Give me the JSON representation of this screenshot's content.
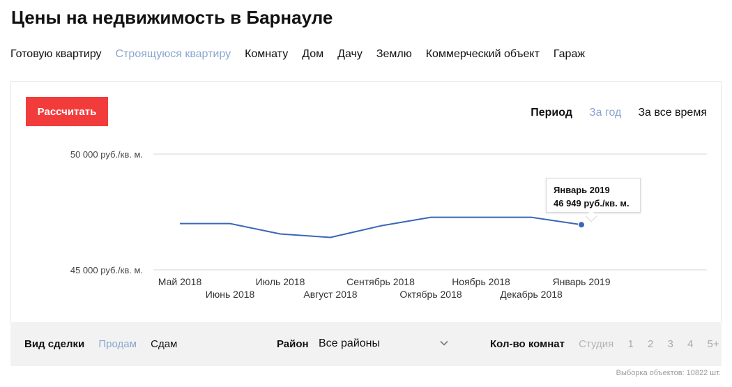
{
  "title": "Цены на недвижимость в Барнауле",
  "property_types": [
    {
      "label": "Готовую квартиру",
      "active": false
    },
    {
      "label": "Строящуюся квартиру",
      "active": true
    },
    {
      "label": "Комнату",
      "active": false
    },
    {
      "label": "Дом",
      "active": false
    },
    {
      "label": "Дачу",
      "active": false
    },
    {
      "label": "Землю",
      "active": false
    },
    {
      "label": "Коммерческий объект",
      "active": false
    },
    {
      "label": "Гараж",
      "active": false
    }
  ],
  "calc_button": "Рассчитать",
  "period": {
    "label": "Период",
    "options": [
      "За год",
      "За все время"
    ],
    "active": "За год"
  },
  "chart_data": {
    "type": "line",
    "categories": [
      "Май 2018",
      "Июнь 2018",
      "Июль 2018",
      "Август 2018",
      "Сентябрь 2018",
      "Октябрь 2018",
      "Ноябрь 2018",
      "Декабрь 2018",
      "Январь 2019"
    ],
    "values": [
      47000,
      47000,
      46550,
      46400,
      46900,
      47270,
      47270,
      47270,
      46949
    ],
    "y_ticks": [
      "50 000 руб./кв. м.",
      "45 000 руб./кв. м."
    ],
    "ylim": [
      45000,
      50000
    ],
    "color": "#3a67b7",
    "highlight_index": 8
  },
  "tooltip": {
    "line1": "Январь 2019",
    "line2": "46 949 руб./кв. м."
  },
  "filters": {
    "deal_label": "Вид сделки",
    "deal_options": [
      "Продам",
      "Сдам"
    ],
    "deal_active": "Продам",
    "district_label": "Район",
    "district_value": "Все районы",
    "rooms_label": "Кол-во комнат",
    "rooms_options": [
      "Студия",
      "1",
      "2",
      "3",
      "4",
      "5+"
    ]
  },
  "sample_text": "Выборка объектов: 10822 шт."
}
